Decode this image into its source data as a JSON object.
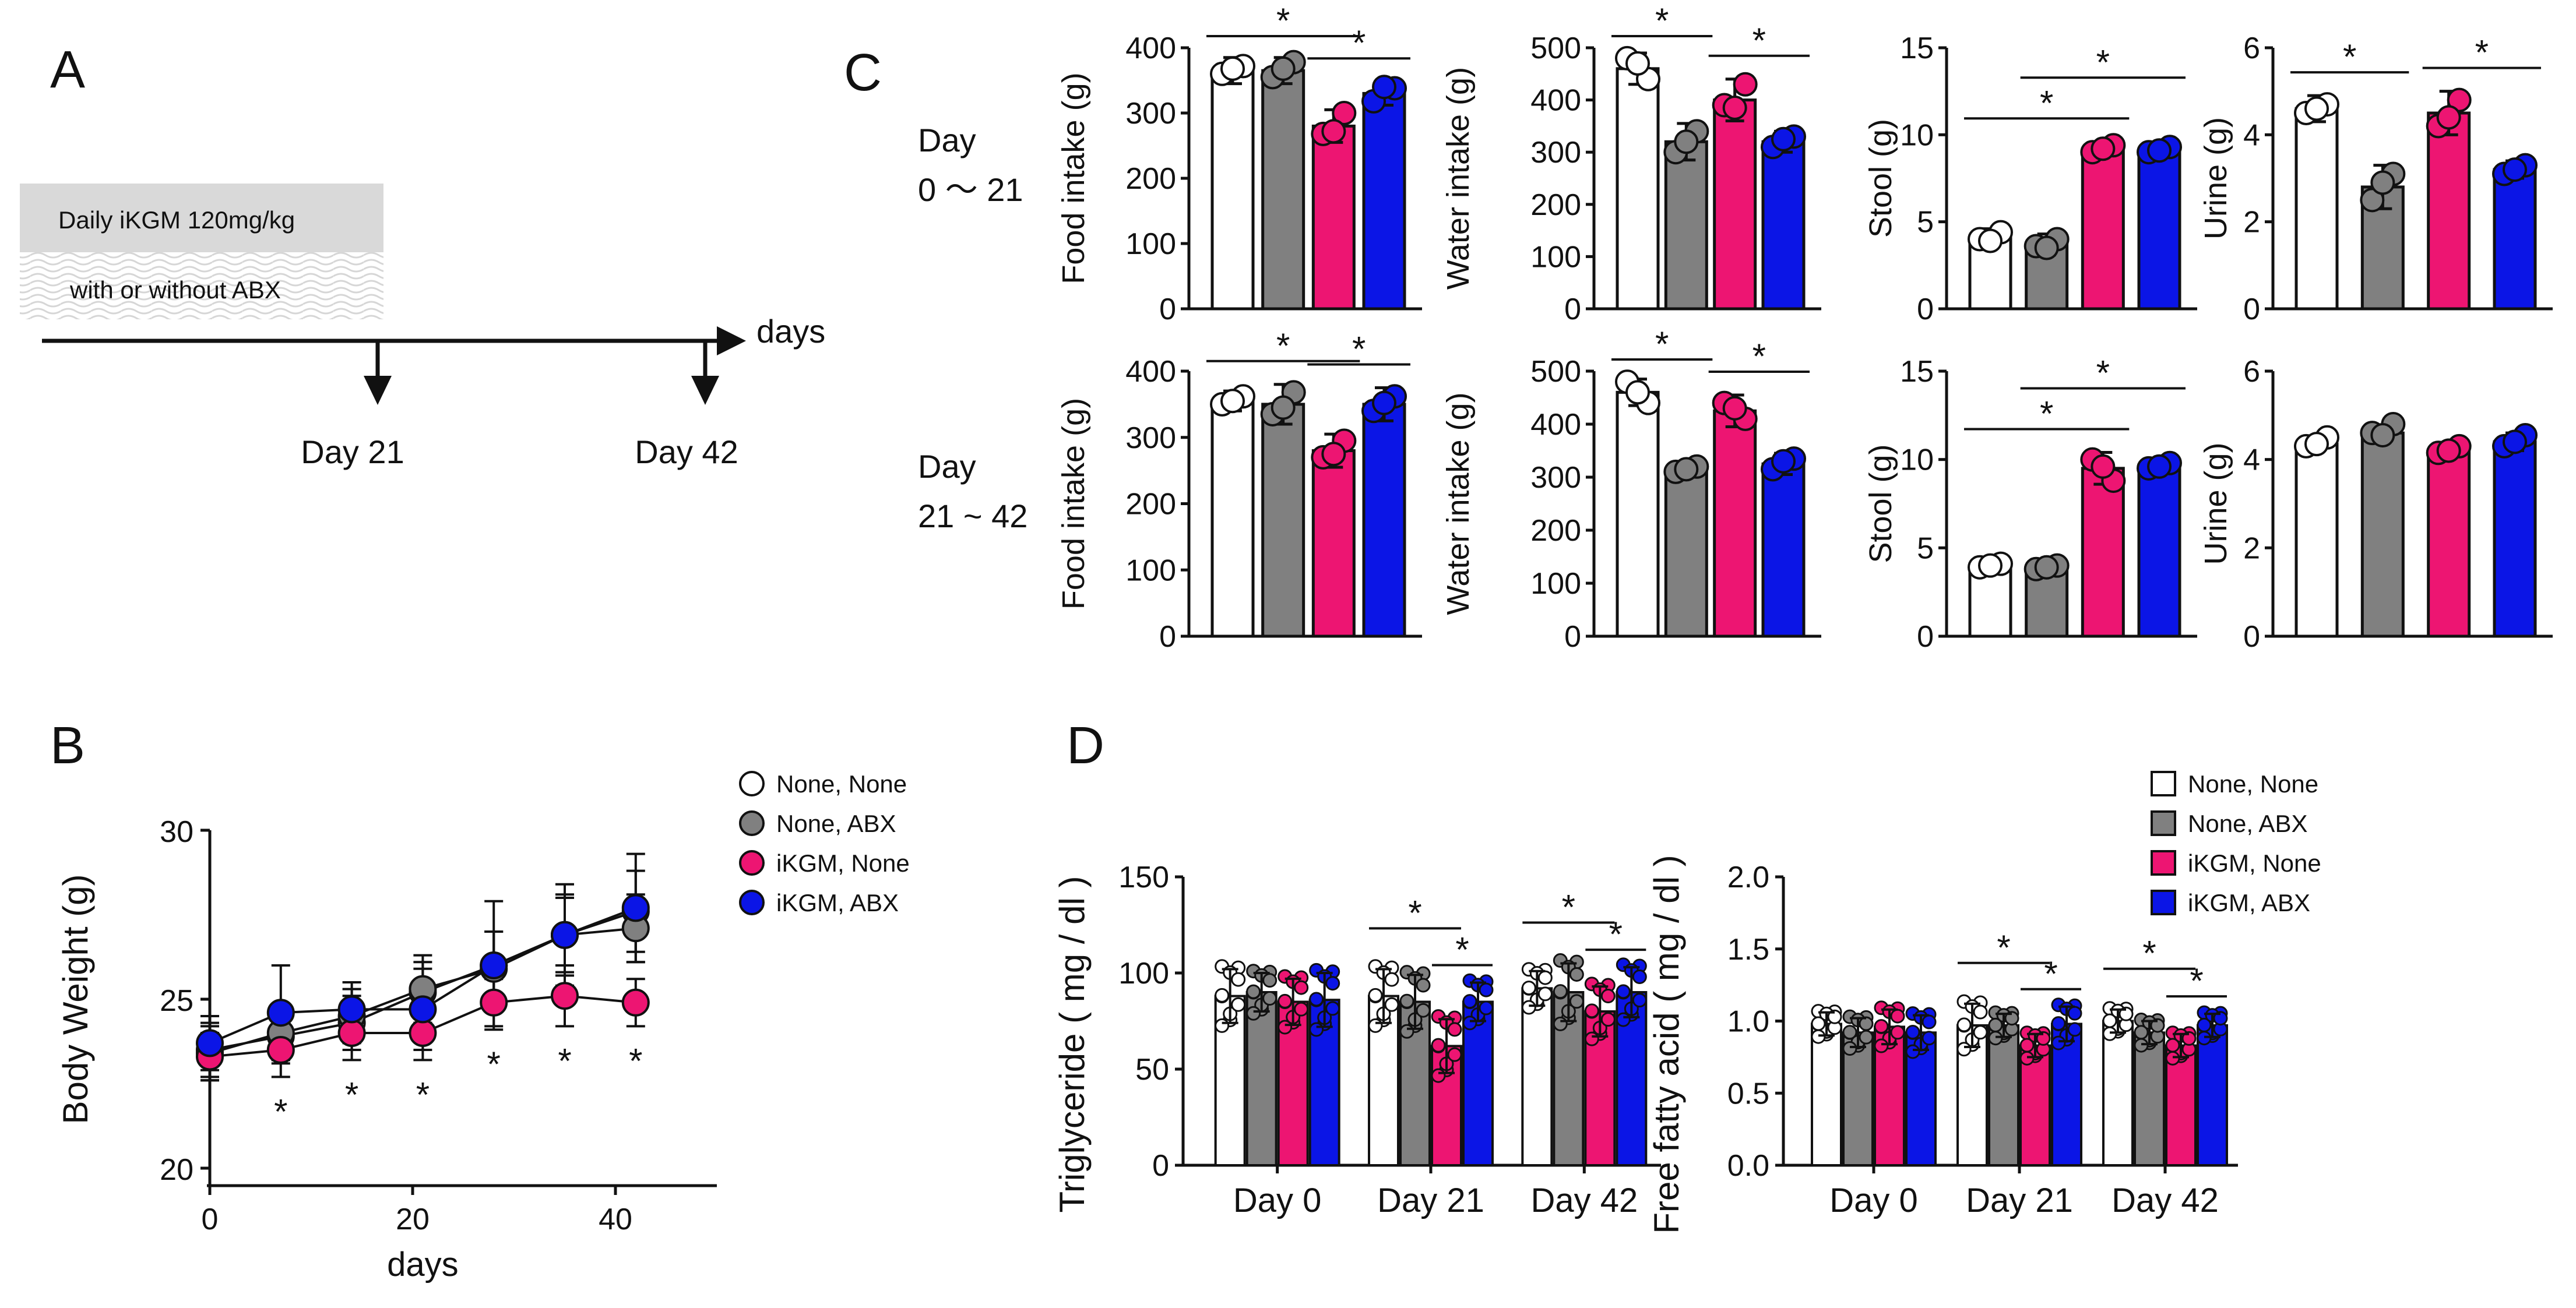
{
  "figure": {
    "panels": {
      "A": "A",
      "B": "B",
      "C": "C",
      "D": "D"
    }
  },
  "timeline": {
    "treatment_label": "Daily iKGM 120mg/kg",
    "abx_label": "with or without ABX",
    "axis_label": "days",
    "markers": [
      "Day 21",
      "Day 42"
    ]
  },
  "legend": {
    "groups": [
      {
        "name": "None, None",
        "color": "#ffffff"
      },
      {
        "name": "None, ABX",
        "color": "#808080"
      },
      {
        "name": "iKGM, None",
        "color": "#ed1572"
      },
      {
        "name": "iKGM, ABX",
        "color": "#0b15e6"
      }
    ]
  },
  "panelC_rows": [
    {
      "label1": "Day",
      "label2": "0 〜 21"
    },
    {
      "label1": "Day",
      "label2": "21 ~ 42"
    }
  ],
  "chart_data": [
    {
      "id": "B",
      "type": "line",
      "title": "",
      "xlabel": "days",
      "ylabel": "Body Weight (g)",
      "xlim": [
        0,
        50
      ],
      "ylim": [
        20,
        30
      ],
      "xticks": [
        "0",
        "20",
        "40"
      ],
      "yticks": [
        "20",
        "25",
        "30"
      ],
      "x": [
        0,
        7,
        14,
        21,
        28,
        35,
        42
      ],
      "series": [
        {
          "name": "None, None",
          "color": "#ffffff",
          "values": [
            23.5,
            23.9,
            24.3,
            25.2,
            26.0,
            26.9,
            27.6
          ],
          "err": [
            0.8,
            0.8,
            0.8,
            0.9,
            1.0,
            1.2,
            1.2
          ]
        },
        {
          "name": "None, ABX",
          "color": "#808080",
          "values": [
            23.4,
            24.0,
            24.5,
            25.3,
            25.9,
            26.9,
            27.1
          ],
          "err": [
            0.8,
            0.8,
            0.8,
            1.0,
            1.1,
            1.1,
            1.0
          ]
        },
        {
          "name": "iKGM, None",
          "color": "#ed1572",
          "values": [
            23.3,
            23.5,
            24.0,
            24.0,
            24.9,
            25.1,
            24.9
          ],
          "err": [
            0.7,
            0.8,
            0.8,
            0.8,
            0.7,
            0.9,
            0.7
          ]
        },
        {
          "name": "iKGM, ABX",
          "color": "#0b15e6",
          "values": [
            23.7,
            24.6,
            24.7,
            24.7,
            26.0,
            26.9,
            27.7
          ],
          "err": [
            0.8,
            1.4,
            0.8,
            1.2,
            1.9,
            1.5,
            1.6
          ]
        }
      ],
      "significance": [
        {
          "x": 7,
          "text": "*"
        },
        {
          "x": 14,
          "text": "*"
        },
        {
          "x": 21,
          "text": "*"
        },
        {
          "x": 28,
          "text": "*"
        },
        {
          "x": 35,
          "text": "*"
        },
        {
          "x": 42,
          "text": "*"
        }
      ]
    },
    {
      "id": "C-food-0-21",
      "type": "bar",
      "ylabel": "Food intake (g)",
      "ylim": [
        0,
        400
      ],
      "yticks": [
        "0",
        "100",
        "200",
        "300",
        "400"
      ],
      "categories": [
        "None, None",
        "None, ABX",
        "iKGM, None",
        "iKGM, ABX"
      ],
      "values": [
        365,
        365,
        280,
        330
      ],
      "err": [
        20,
        20,
        25,
        18
      ],
      "points": [
        [
          360,
          372,
          368
        ],
        [
          355,
          378,
          368
        ],
        [
          268,
          300,
          272
        ],
        [
          318,
          338,
          340
        ]
      ],
      "brackets": [
        {
          "a": 0,
          "b": 2,
          "text": "*"
        },
        {
          "a": 2,
          "b": 3,
          "text": "*"
        }
      ]
    },
    {
      "id": "C-water-0-21",
      "type": "bar",
      "ylabel": "Water intake (g)",
      "ylim": [
        0,
        500
      ],
      "yticks": [
        "0",
        "100",
        "200",
        "300",
        "400",
        "500"
      ],
      "categories": [
        "None, None",
        "None, ABX",
        "iKGM, None",
        "iKGM, ABX"
      ],
      "values": [
        460,
        320,
        400,
        320
      ],
      "err": [
        30,
        35,
        40,
        20
      ],
      "points": [
        [
          480,
          440,
          470
        ],
        [
          300,
          340,
          320
        ],
        [
          390,
          430,
          385
        ],
        [
          310,
          330,
          325
        ]
      ],
      "brackets": [
        {
          "a": 0,
          "b": 1,
          "text": "*"
        },
        {
          "a": 2,
          "b": 3,
          "text": "*"
        }
      ]
    },
    {
      "id": "C-stool-0-21",
      "type": "bar",
      "ylabel": "Stool (g)",
      "ylim": [
        0,
        15
      ],
      "yticks": [
        "0",
        "5",
        "10",
        "15"
      ],
      "categories": [
        "None, None",
        "None, ABX",
        "iKGM, None",
        "iKGM, ABX"
      ],
      "values": [
        4.1,
        3.7,
        9.2,
        9.1
      ],
      "err": [
        0.5,
        0.6,
        0.4,
        0.3
      ],
      "points": [
        [
          4.0,
          4.4,
          3.9
        ],
        [
          3.6,
          4.0,
          3.5
        ],
        [
          9.0,
          9.4,
          9.2
        ],
        [
          9.0,
          9.3,
          9.1
        ]
      ],
      "brackets": [
        {
          "a": 0,
          "b": 2,
          "text": "*"
        },
        {
          "a": 1,
          "b": 3,
          "text": "*"
        }
      ]
    },
    {
      "id": "C-urine-0-21",
      "type": "bar",
      "ylabel": "Urine (g)",
      "ylim": [
        0,
        6
      ],
      "yticks": [
        "0",
        "2",
        "4",
        "6"
      ],
      "categories": [
        "None, None",
        "None, ABX",
        "iKGM, None",
        "iKGM, ABX"
      ],
      "values": [
        4.6,
        2.8,
        4.5,
        3.2
      ],
      "err": [
        0.3,
        0.5,
        0.5,
        0.2
      ],
      "points": [
        [
          4.5,
          4.7,
          4.6
        ],
        [
          2.5,
          3.1,
          2.9
        ],
        [
          4.2,
          4.8,
          4.4
        ],
        [
          3.1,
          3.3,
          3.2
        ]
      ],
      "brackets": [
        {
          "a": 0,
          "b": 1,
          "text": "*"
        },
        {
          "a": 2,
          "b": 3,
          "text": "*"
        }
      ]
    },
    {
      "id": "C-food-21-42",
      "type": "bar",
      "ylabel": "Food intake (g)",
      "ylim": [
        0,
        400
      ],
      "yticks": [
        "0",
        "100",
        "200",
        "300",
        "400"
      ],
      "categories": [
        "None, None",
        "None, ABX",
        "iKGM, None",
        "iKGM, ABX"
      ],
      "values": [
        355,
        350,
        280,
        350
      ],
      "err": [
        15,
        30,
        25,
        25
      ],
      "points": [
        [
          350,
          362,
          355
        ],
        [
          335,
          368,
          345
        ],
        [
          270,
          295,
          275
        ],
        [
          340,
          362,
          352
        ]
      ],
      "brackets": [
        {
          "a": 0,
          "b": 2,
          "text": "*"
        },
        {
          "a": 2,
          "b": 3,
          "text": "*"
        }
      ]
    },
    {
      "id": "C-water-21-42",
      "type": "bar",
      "ylabel": "Water intake (g)",
      "ylim": [
        0,
        500
      ],
      "yticks": [
        "0",
        "100",
        "200",
        "300",
        "400",
        "500"
      ],
      "categories": [
        "None, None",
        "None, ABX",
        "iKGM, None",
        "iKGM, ABX"
      ],
      "values": [
        460,
        315,
        425,
        325
      ],
      "err": [
        25,
        10,
        30,
        20
      ],
      "points": [
        [
          480,
          440,
          460
        ],
        [
          310,
          320,
          315
        ],
        [
          440,
          410,
          430
        ],
        [
          315,
          335,
          330
        ]
      ],
      "brackets": [
        {
          "a": 0,
          "b": 1,
          "text": "*"
        },
        {
          "a": 2,
          "b": 3,
          "text": "*"
        }
      ]
    },
    {
      "id": "C-stool-21-42",
      "type": "bar",
      "ylabel": "Stool (g)",
      "ylim": [
        0,
        15
      ],
      "yticks": [
        "0",
        "5",
        "10",
        "15"
      ],
      "categories": [
        "None, None",
        "None, ABX",
        "iKGM, None",
        "iKGM, ABX"
      ],
      "values": [
        4.0,
        3.9,
        9.5,
        9.6
      ],
      "err": [
        0.3,
        0.4,
        0.9,
        0.3
      ],
      "points": [
        [
          3.9,
          4.1,
          4.0
        ],
        [
          3.8,
          4.0,
          3.9
        ],
        [
          10.0,
          8.8,
          9.6
        ],
        [
          9.5,
          9.8,
          9.6
        ]
      ],
      "brackets": [
        {
          "a": 0,
          "b": 2,
          "text": "*"
        },
        {
          "a": 1,
          "b": 3,
          "text": "*"
        }
      ]
    },
    {
      "id": "C-urine-21-42",
      "type": "bar",
      "ylabel": "Urine (g)",
      "ylim": [
        0,
        6
      ],
      "yticks": [
        "0",
        "2",
        "4",
        "6"
      ],
      "categories": [
        "None, None",
        "None, ABX",
        "iKGM, None",
        "iKGM, ABX"
      ],
      "values": [
        4.35,
        4.6,
        4.2,
        4.4
      ],
      "err": [
        0.15,
        0.15,
        0.15,
        0.2
      ],
      "points": [
        [
          4.3,
          4.5,
          4.35
        ],
        [
          4.6,
          4.8,
          4.55
        ],
        [
          4.15,
          4.3,
          4.2
        ],
        [
          4.3,
          4.55,
          4.4
        ]
      ],
      "brackets": []
    },
    {
      "id": "D-triglyceride",
      "type": "bar",
      "ylabel": "Triglyceride ( mg / dl )",
      "ylim": [
        0,
        150
      ],
      "yticks": [
        "0",
        "50",
        "100",
        "150"
      ],
      "categories": [
        "Day 0",
        "Day 21",
        "Day 42"
      ],
      "series": [
        {
          "name": "None, None",
          "color": "#ffffff",
          "values": [
            88,
            88,
            92
          ],
          "err": [
            14,
            14,
            9
          ]
        },
        {
          "name": "None, ABX",
          "color": "#808080",
          "values": [
            90,
            85,
            90
          ],
          "err": [
            10,
            14,
            15
          ]
        },
        {
          "name": "iKGM, None",
          "color": "#ed1572",
          "values": [
            85,
            62,
            80
          ],
          "err": [
            12,
            14,
            13
          ]
        },
        {
          "name": "iKGM, ABX",
          "color": "#0b15e6",
          "values": [
            86,
            85,
            90
          ],
          "err": [
            14,
            10,
            13
          ]
        }
      ],
      "brackets": [
        {
          "cat": 1,
          "a": 0,
          "b": 2,
          "text": "*"
        },
        {
          "cat": 1,
          "a": 2,
          "b": 3,
          "text": "*"
        },
        {
          "cat": 2,
          "a": 0,
          "b": 2,
          "text": "*"
        },
        {
          "cat": 2,
          "a": 2,
          "b": 3,
          "text": "*"
        }
      ]
    },
    {
      "id": "D-free-fatty-acid",
      "type": "bar",
      "ylabel": "Free fatty acid ( mg / dl )",
      "ylim": [
        0,
        2.0
      ],
      "yticks": [
        "0.0",
        "0.5",
        "1.0",
        "1.5",
        "2.0"
      ],
      "categories": [
        "Day 0",
        "Day 21",
        "Day 42"
      ],
      "series": [
        {
          "name": "None, None",
          "color": "#ffffff",
          "values": [
            0.98,
            0.97,
            1.0
          ],
          "err": [
            0.08,
            0.15,
            0.08
          ]
        },
        {
          "name": "None, ABX",
          "color": "#808080",
          "values": [
            0.92,
            0.97,
            0.92
          ],
          "err": [
            0.1,
            0.08,
            0.08
          ]
        },
        {
          "name": "iKGM, None",
          "color": "#ed1572",
          "values": [
            0.96,
            0.83,
            0.83
          ],
          "err": [
            0.12,
            0.08,
            0.08
          ]
        },
        {
          "name": "iKGM, ABX",
          "color": "#0b15e6",
          "values": [
            0.92,
            0.98,
            0.97
          ],
          "err": [
            0.12,
            0.12,
            0.08
          ]
        }
      ],
      "brackets": [
        {
          "cat": 1,
          "a": 0,
          "b": 2,
          "text": "*"
        },
        {
          "cat": 1,
          "a": 2,
          "b": 3,
          "text": "*"
        },
        {
          "cat": 2,
          "a": 0,
          "b": 2,
          "text": "*"
        },
        {
          "cat": 2,
          "a": 2,
          "b": 3,
          "text": "*"
        }
      ]
    }
  ]
}
